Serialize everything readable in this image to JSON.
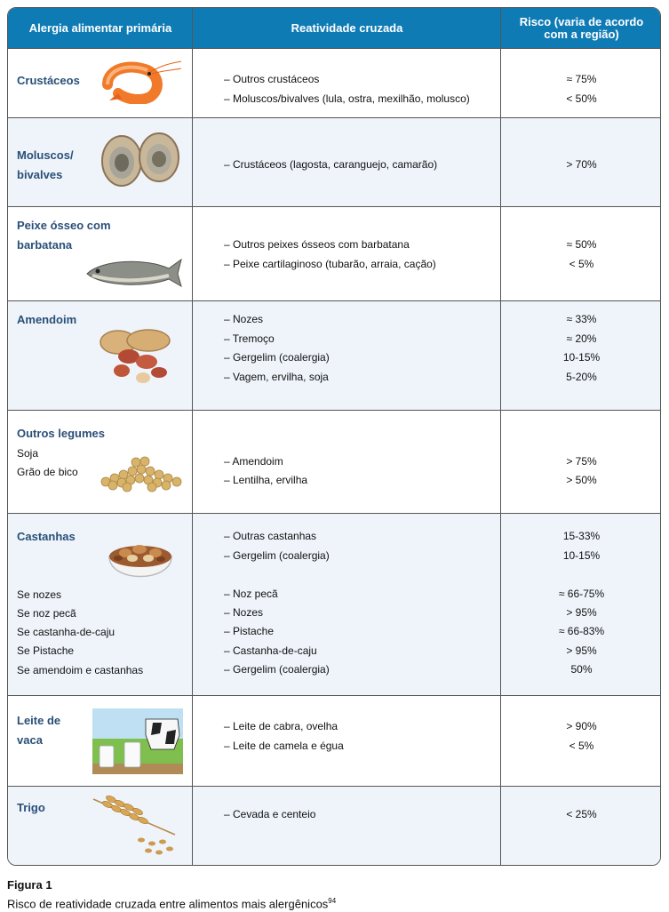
{
  "header": {
    "col1": "Alergia alimentar primária",
    "col2": "Reatividade cruzada",
    "col3": "Risco (varia de acordo com a região)"
  },
  "rows": [
    {
      "category": "Crustáceos",
      "reactivity": [
        "– Outros crustáceos",
        "– Moluscos/bivalves (lula, ostra, mexilhão, molusco)"
      ],
      "risk": [
        "≈ 75%",
        "<  50%"
      ],
      "image": "shrimp"
    },
    {
      "category": "Moluscos/ bivalves",
      "reactivity": [
        "– Crustáceos (lagosta, caranguejo, camarão)"
      ],
      "risk": [
        "> 70%"
      ],
      "image": "oysters"
    },
    {
      "category": "Peixe ósseo com barbatana",
      "reactivity": [
        "– Outros peixes ósseos com barbatana",
        "– Peixe cartilaginoso (tubarão, arraia, cação)"
      ],
      "risk": [
        "≈ 50%",
        "< 5%"
      ],
      "image": "fish"
    },
    {
      "category": "Amendoim",
      "reactivity": [
        "– Nozes",
        "– Tremoço",
        "– Gergelim (coalergia)",
        "– Vagem, ervilha, soja"
      ],
      "risk": [
        "≈ 33%",
        "≈ 20%",
        "10-15%",
        "5-20%"
      ],
      "image": "peanuts"
    },
    {
      "category": "Outros legumes",
      "subitems": [
        "Soja",
        "Grão de bico"
      ],
      "reactivity": [
        "– Amendoim",
        "– Lentilha, ervilha"
      ],
      "risk": [
        "> 75%",
        "> 50%"
      ],
      "image": "soybeans"
    },
    {
      "category": "Castanhas",
      "subitems": [
        "Se nozes",
        "Se noz pecã",
        "Se castanha-de-caju",
        "Se Pistache",
        "Se amendoim e castanhas"
      ],
      "reactivity": [
        "– Outras castanhas",
        "– Gergelim (coalergia)",
        "– Noz pecã",
        "– Nozes",
        "– Pistache",
        "– Castanha-de-caju",
        "– Gergelim (coalergia)"
      ],
      "risk": [
        "15-33%",
        "10-15%",
        "≈ 66-75%",
        "> 95%",
        "≈ 66-83%",
        "> 95%",
        "50%"
      ],
      "image": "nuts-bowl"
    },
    {
      "category": "Leite de vaca",
      "reactivity": [
        "– Leite de cabra, ovelha",
        "– Leite de camela e égua"
      ],
      "risk": [
        "> 90%",
        "< 5%"
      ],
      "image": "cow-milk"
    },
    {
      "category": "Trigo",
      "reactivity": [
        "– Cevada e centeio"
      ],
      "risk": [
        "< 25%"
      ],
      "image": "wheat"
    }
  ],
  "caption": {
    "label": "Figura 1",
    "text": "Risco de reatividade cruzada entre alimentos mais alergênicos",
    "ref": "94"
  }
}
